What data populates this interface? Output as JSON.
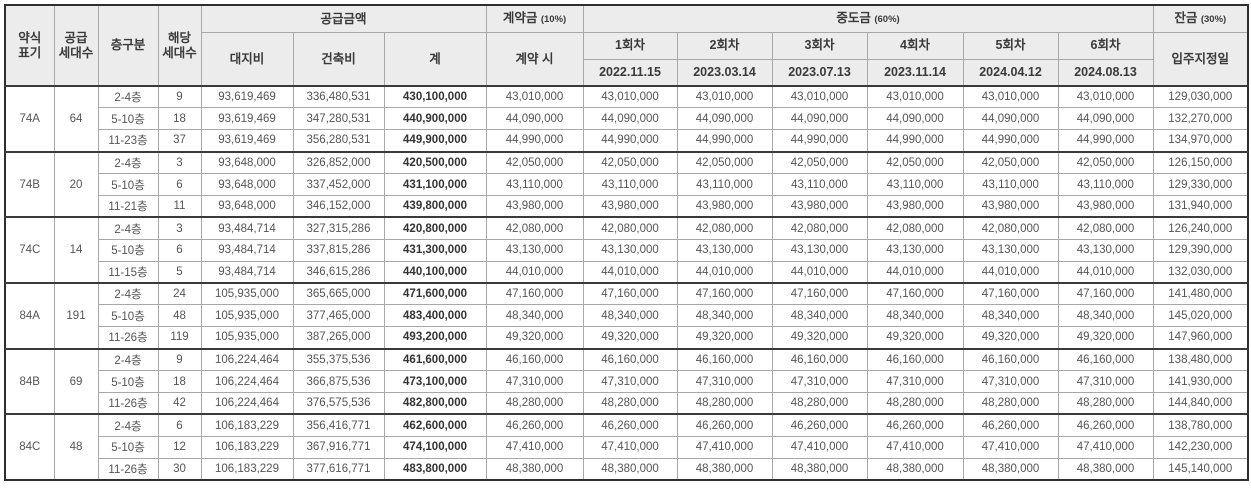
{
  "header": {
    "abbrev": "약식\n표기",
    "supply_units": "공급\n세대수",
    "floor_class": "층구분",
    "applicable_units": "해당\n세대수",
    "supply_amount_group": "공급금액",
    "land_cost": "대지비",
    "construction_cost": "건축비",
    "total": "계",
    "contract_group": "계약금",
    "contract_pct": "(10%)",
    "contract_when": "계약 시",
    "interim_group": "중도금",
    "interim_pct": "(60%)",
    "installments": [
      {
        "label": "1회차",
        "date": "2022.11.15"
      },
      {
        "label": "2회차",
        "date": "2023.03.14"
      },
      {
        "label": "3회차",
        "date": "2023.07.13"
      },
      {
        "label": "4회차",
        "date": "2023.11.14"
      },
      {
        "label": "5회차",
        "date": "2024.04.12"
      },
      {
        "label": "6회차",
        "date": "2024.08.13"
      }
    ],
    "balance_group": "잔금",
    "balance_pct": "(30%)",
    "balance_when": "입주지정일"
  },
  "groups": [
    {
      "type": "74A",
      "supply_count": "64",
      "rows": [
        {
          "floor": "2-4층",
          "units": "9",
          "land": "93,619,469",
          "construction": "336,480,531",
          "total": "430,100,000",
          "contract": "43,010,000",
          "installments": [
            "43,010,000",
            "43,010,000",
            "43,010,000",
            "43,010,000",
            "43,010,000",
            "43,010,000"
          ],
          "balance": "129,030,000"
        },
        {
          "floor": "5-10층",
          "units": "18",
          "land": "93,619,469",
          "construction": "347,280,531",
          "total": "440,900,000",
          "contract": "44,090,000",
          "installments": [
            "44,090,000",
            "44,090,000",
            "44,090,000",
            "44,090,000",
            "44,090,000",
            "44,090,000"
          ],
          "balance": "132,270,000"
        },
        {
          "floor": "11-23층",
          "units": "37",
          "land": "93,619,469",
          "construction": "356,280,531",
          "total": "449,900,000",
          "contract": "44,990,000",
          "installments": [
            "44,990,000",
            "44,990,000",
            "44,990,000",
            "44,990,000",
            "44,990,000",
            "44,990,000"
          ],
          "balance": "134,970,000"
        }
      ]
    },
    {
      "type": "74B",
      "supply_count": "20",
      "rows": [
        {
          "floor": "2-4층",
          "units": "3",
          "land": "93,648,000",
          "construction": "326,852,000",
          "total": "420,500,000",
          "contract": "42,050,000",
          "installments": [
            "42,050,000",
            "42,050,000",
            "42,050,000",
            "42,050,000",
            "42,050,000",
            "42,050,000"
          ],
          "balance": "126,150,000"
        },
        {
          "floor": "5-10층",
          "units": "6",
          "land": "93,648,000",
          "construction": "337,452,000",
          "total": "431,100,000",
          "contract": "43,110,000",
          "installments": [
            "43,110,000",
            "43,110,000",
            "43,110,000",
            "43,110,000",
            "43,110,000",
            "43,110,000"
          ],
          "balance": "129,330,000"
        },
        {
          "floor": "11-21층",
          "units": "11",
          "land": "93,648,000",
          "construction": "346,152,000",
          "total": "439,800,000",
          "contract": "43,980,000",
          "installments": [
            "43,980,000",
            "43,980,000",
            "43,980,000",
            "43,980,000",
            "43,980,000",
            "43,980,000"
          ],
          "balance": "131,940,000"
        }
      ]
    },
    {
      "type": "74C",
      "supply_count": "14",
      "rows": [
        {
          "floor": "2-4층",
          "units": "3",
          "land": "93,484,714",
          "construction": "327,315,286",
          "total": "420,800,000",
          "contract": "42,080,000",
          "installments": [
            "42,080,000",
            "42,080,000",
            "42,080,000",
            "42,080,000",
            "42,080,000",
            "42,080,000"
          ],
          "balance": "126,240,000"
        },
        {
          "floor": "5-10층",
          "units": "6",
          "land": "93,484,714",
          "construction": "337,815,286",
          "total": "431,300,000",
          "contract": "43,130,000",
          "installments": [
            "43,130,000",
            "43,130,000",
            "43,130,000",
            "43,130,000",
            "43,130,000",
            "43,130,000"
          ],
          "balance": "129,390,000"
        },
        {
          "floor": "11-15층",
          "units": "5",
          "land": "93,484,714",
          "construction": "346,615,286",
          "total": "440,100,000",
          "contract": "44,010,000",
          "installments": [
            "44,010,000",
            "44,010,000",
            "44,010,000",
            "44,010,000",
            "44,010,000",
            "44,010,000"
          ],
          "balance": "132,030,000"
        }
      ]
    },
    {
      "type": "84A",
      "supply_count": "191",
      "rows": [
        {
          "floor": "2-4층",
          "units": "24",
          "land": "105,935,000",
          "construction": "365,665,000",
          "total": "471,600,000",
          "contract": "47,160,000",
          "installments": [
            "47,160,000",
            "47,160,000",
            "47,160,000",
            "47,160,000",
            "47,160,000",
            "47,160,000"
          ],
          "balance": "141,480,000"
        },
        {
          "floor": "5-10층",
          "units": "48",
          "land": "105,935,000",
          "construction": "377,465,000",
          "total": "483,400,000",
          "contract": "48,340,000",
          "installments": [
            "48,340,000",
            "48,340,000",
            "48,340,000",
            "48,340,000",
            "48,340,000",
            "48,340,000"
          ],
          "balance": "145,020,000"
        },
        {
          "floor": "11-26층",
          "units": "119",
          "land": "105,935,000",
          "construction": "387,265,000",
          "total": "493,200,000",
          "contract": "49,320,000",
          "installments": [
            "49,320,000",
            "49,320,000",
            "49,320,000",
            "49,320,000",
            "49,320,000",
            "49,320,000"
          ],
          "balance": "147,960,000"
        }
      ]
    },
    {
      "type": "84B",
      "supply_count": "69",
      "rows": [
        {
          "floor": "2-4층",
          "units": "9",
          "land": "106,224,464",
          "construction": "355,375,536",
          "total": "461,600,000",
          "contract": "46,160,000",
          "installments": [
            "46,160,000",
            "46,160,000",
            "46,160,000",
            "46,160,000",
            "46,160,000",
            "46,160,000"
          ],
          "balance": "138,480,000"
        },
        {
          "floor": "5-10층",
          "units": "18",
          "land": "106,224,464",
          "construction": "366,875,536",
          "total": "473,100,000",
          "contract": "47,310,000",
          "installments": [
            "47,310,000",
            "47,310,000",
            "47,310,000",
            "47,310,000",
            "47,310,000",
            "47,310,000"
          ],
          "balance": "141,930,000"
        },
        {
          "floor": "11-26층",
          "units": "42",
          "land": "106,224,464",
          "construction": "376,575,536",
          "total": "482,800,000",
          "contract": "48,280,000",
          "installments": [
            "48,280,000",
            "48,280,000",
            "48,280,000",
            "48,280,000",
            "48,280,000",
            "48,280,000"
          ],
          "balance": "144,840,000"
        }
      ]
    },
    {
      "type": "84C",
      "supply_count": "48",
      "rows": [
        {
          "floor": "2-4층",
          "units": "6",
          "land": "106,183,229",
          "construction": "356,416,771",
          "total": "462,600,000",
          "contract": "46,260,000",
          "installments": [
            "46,260,000",
            "46,260,000",
            "46,260,000",
            "46,260,000",
            "46,260,000",
            "46,260,000"
          ],
          "balance": "138,780,000"
        },
        {
          "floor": "5-10층",
          "units": "12",
          "land": "106,183,229",
          "construction": "367,916,771",
          "total": "474,100,000",
          "contract": "47,410,000",
          "installments": [
            "47,410,000",
            "47,410,000",
            "47,410,000",
            "47,410,000",
            "47,410,000",
            "47,410,000"
          ],
          "balance": "142,230,000"
        },
        {
          "floor": "11-26층",
          "units": "30",
          "land": "106,183,229",
          "construction": "377,616,771",
          "total": "483,800,000",
          "contract": "48,380,000",
          "installments": [
            "48,380,000",
            "48,380,000",
            "48,380,000",
            "48,380,000",
            "48,380,000",
            "48,380,000"
          ],
          "balance": "145,140,000"
        }
      ]
    }
  ]
}
